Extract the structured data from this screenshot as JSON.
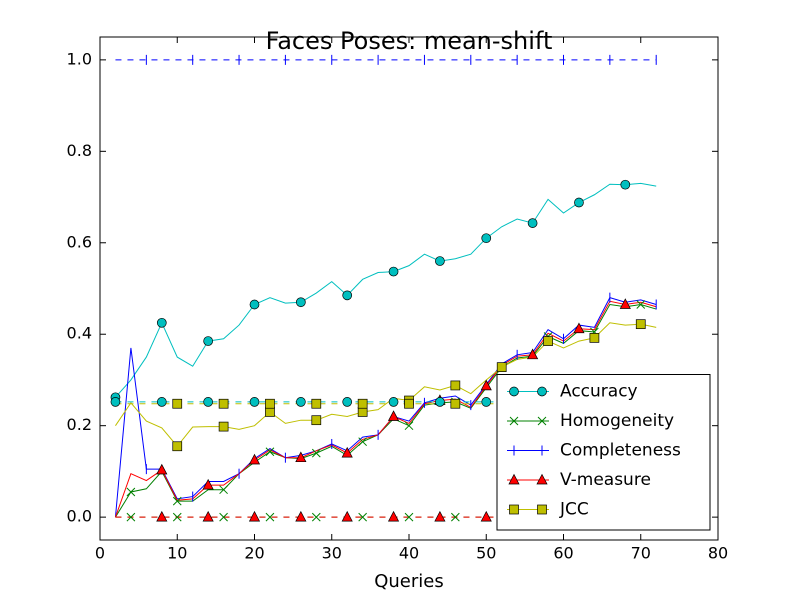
{
  "chart_data": {
    "type": "line",
    "title": "Faces Poses: mean-shift",
    "xlabel": "Queries",
    "xlim": [
      0,
      80
    ],
    "ylim": [
      -0.05,
      1.05
    ],
    "xticks": [
      0,
      10,
      20,
      30,
      40,
      50,
      60,
      70,
      80
    ],
    "yticks": [
      {
        "value": 0,
        "label": "0.0"
      },
      {
        "value": 0.2,
        "label": "0.2"
      },
      {
        "value": 0.4,
        "label": "0.4"
      },
      {
        "value": 0.6,
        "label": "0.6"
      },
      {
        "value": 0.8,
        "label": "0.8"
      },
      {
        "value": 1.0,
        "label": "1.0"
      }
    ],
    "legend": "lower right",
    "x": [
      2,
      4,
      6,
      8,
      10,
      12,
      14,
      16,
      18,
      20,
      22,
      24,
      26,
      28,
      30,
      32,
      34,
      36,
      38,
      40,
      42,
      44,
      46,
      48,
      50,
      52,
      54,
      56,
      58,
      60,
      62,
      64,
      66,
      68,
      70,
      72
    ],
    "series": [
      {
        "name": "Accuracy",
        "color": "#00bfbf",
        "marker": "circle",
        "marker_start": 0,
        "marker_step": 3,
        "linestyle": "solid",
        "values": [
          0.262,
          0.3,
          0.35,
          0.425,
          0.35,
          0.33,
          0.385,
          0.39,
          0.42,
          0.465,
          0.48,
          0.468,
          0.47,
          0.49,
          0.515,
          0.485,
          0.52,
          0.535,
          0.537,
          0.55,
          0.575,
          0.56,
          0.565,
          0.575,
          0.61,
          0.635,
          0.652,
          0.643,
          0.695,
          0.665,
          0.688,
          0.705,
          0.728,
          0.727,
          0.73,
          0.724
        ]
      },
      {
        "name": "Homogeneity",
        "color": "#008000",
        "marker": "x",
        "marker_start": 1,
        "marker_step": 3,
        "linestyle": "solid",
        "values": [
          0,
          0.055,
          0.062,
          0.1,
          0.035,
          0.035,
          0.06,
          0.06,
          0.095,
          0.12,
          0.143,
          0.13,
          0.128,
          0.14,
          0.155,
          0.135,
          0.165,
          0.18,
          0.215,
          0.2,
          0.245,
          0.25,
          0.252,
          0.238,
          0.283,
          0.328,
          0.348,
          0.352,
          0.395,
          0.38,
          0.408,
          0.405,
          0.465,
          0.46,
          0.465,
          0.455
        ]
      },
      {
        "name": "Completeness",
        "color": "#0000ff",
        "marker": "vline",
        "marker_start": 2,
        "marker_step": 3,
        "linestyle": "solid",
        "values": [
          0,
          0.37,
          0.105,
          0.105,
          0.04,
          0.045,
          0.078,
          0.078,
          0.095,
          0.128,
          0.15,
          0.13,
          0.135,
          0.145,
          0.16,
          0.145,
          0.175,
          0.18,
          0.22,
          0.21,
          0.25,
          0.26,
          0.265,
          0.245,
          0.29,
          0.335,
          0.355,
          0.36,
          0.41,
          0.39,
          0.42,
          0.415,
          0.48,
          0.47,
          0.475,
          0.465
        ]
      },
      {
        "name": "V-measure",
        "color": "#ff0000",
        "marker": "triangle",
        "marker_start": 3,
        "marker_step": 3,
        "linestyle": "solid",
        "values": [
          0,
          0.095,
          0.08,
          0.103,
          0.037,
          0.04,
          0.07,
          0.07,
          0.095,
          0.125,
          0.147,
          0.13,
          0.13,
          0.145,
          0.158,
          0.14,
          0.17,
          0.18,
          0.22,
          0.205,
          0.248,
          0.255,
          0.258,
          0.24,
          0.287,
          0.332,
          0.352,
          0.355,
          0.402,
          0.385,
          0.412,
          0.41,
          0.472,
          0.465,
          0.47,
          0.46
        ]
      },
      {
        "name": "JCC",
        "color": "#bfbf00",
        "marker": "square",
        "marker_start": 4,
        "marker_step": 3,
        "linestyle": "solid",
        "values": [
          0.2,
          0.25,
          0.21,
          0.195,
          0.155,
          0.197,
          0.198,
          0.198,
          0.192,
          0.2,
          0.23,
          0.205,
          0.212,
          0.212,
          0.225,
          0.22,
          0.23,
          0.235,
          0.26,
          0.255,
          0.285,
          0.278,
          0.288,
          0.27,
          0.3,
          0.328,
          0.345,
          0.35,
          0.385,
          0.37,
          0.385,
          0.392,
          0.425,
          0.42,
          0.422,
          0.415
        ]
      },
      {
        "color": "#00bfbf",
        "marker": "circle",
        "marker_start": 0,
        "marker_step": 3,
        "linestyle": "dashed",
        "values": [
          0.252,
          0.252,
          0.252,
          0.252,
          0.252,
          0.252,
          0.252,
          0.252,
          0.252,
          0.252,
          0.252,
          0.252,
          0.252,
          0.252,
          0.252,
          0.252,
          0.252,
          0.252,
          0.252,
          0.252,
          0.252,
          0.252,
          0.252,
          0.252,
          0.252,
          0.252,
          0.252,
          0.252,
          0.252,
          0.252,
          0.252,
          0.252,
          0.252,
          0.252,
          0.252,
          0.252
        ]
      },
      {
        "color": "#008000",
        "marker": "x",
        "marker_start": 1,
        "marker_step": 3,
        "linestyle": "dashed",
        "values": [
          0,
          0,
          0,
          0,
          0,
          0,
          0,
          0,
          0,
          0,
          0,
          0,
          0,
          0,
          0,
          0,
          0,
          0,
          0,
          0,
          0,
          0,
          0,
          0,
          0,
          0,
          0,
          0,
          0,
          0,
          0,
          0,
          0,
          0,
          0,
          0
        ]
      },
      {
        "color": "#0000ff",
        "marker": "vline",
        "marker_start": 2,
        "marker_step": 3,
        "linestyle": "dashed",
        "values": [
          1,
          1,
          1,
          1,
          1,
          1,
          1,
          1,
          1,
          1,
          1,
          1,
          1,
          1,
          1,
          1,
          1,
          1,
          1,
          1,
          1,
          1,
          1,
          1,
          1,
          1,
          1,
          1,
          1,
          1,
          1,
          1,
          1,
          1,
          1,
          1
        ]
      },
      {
        "color": "#ff0000",
        "marker": "triangle",
        "marker_start": 3,
        "marker_step": 3,
        "linestyle": "dashed",
        "values": [
          0,
          0,
          0,
          0,
          0,
          0,
          0,
          0,
          0,
          0,
          0,
          0,
          0,
          0,
          0,
          0,
          0,
          0,
          0,
          0,
          0,
          0,
          0,
          0,
          0,
          0,
          0,
          0,
          0,
          0,
          0,
          0,
          0,
          0,
          0,
          0
        ]
      },
      {
        "color": "#bfbf00",
        "marker": "square",
        "marker_start": 4,
        "marker_step": 3,
        "linestyle": "dashed",
        "values": [
          0.248,
          0.248,
          0.248,
          0.248,
          0.248,
          0.248,
          0.248,
          0.248,
          0.248,
          0.248,
          0.248,
          0.248,
          0.248,
          0.248,
          0.248,
          0.248,
          0.248,
          0.248,
          0.248,
          0.248,
          0.248,
          0.248,
          0.248,
          0.248,
          0.248,
          0.248,
          0.248,
          0.248,
          0.248,
          0.248,
          0.248,
          0.248,
          0.248,
          0.248,
          0.248,
          0.248
        ]
      }
    ]
  }
}
